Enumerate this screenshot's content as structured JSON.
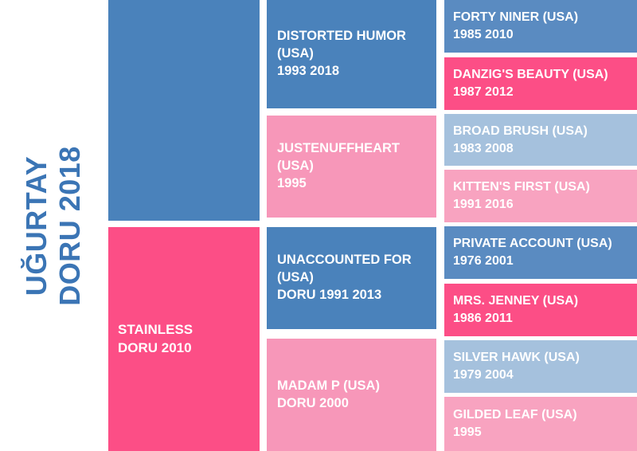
{
  "title": {
    "line1": "UĞURTAY",
    "line2": "DORU 2018"
  },
  "colors": {
    "blue": "#4a82bb",
    "blue_strong": "#5a8bc1",
    "blue_light": "#a5c1dd",
    "pink_bright": "#fc4e86",
    "pink_mid": "#f797b9",
    "pink_light": "#f8a3c0",
    "title_text": "#3b75b5",
    "cell_text": "#ffffff",
    "background": "#ffffff"
  },
  "generation1": [
    {
      "name": "sire-unnamed",
      "color_key": "blue",
      "lines": []
    },
    {
      "name": "stainless",
      "color_key": "pink_bright",
      "lines": [
        "STAINLESS",
        "DORU 2010"
      ]
    }
  ],
  "generation2": [
    {
      "name": "distorted-humor",
      "color_key": "blue",
      "lines": [
        "DISTORTED HUMOR",
        "(USA)",
        "1993 2018"
      ]
    },
    {
      "name": "justenuffheart",
      "color_key": "pink_mid",
      "lines": [
        "JUSTENUFFHEART",
        "(USA)",
        "1995"
      ]
    },
    {
      "name": "unaccounted-for",
      "color_key": "blue",
      "lines": [
        "UNACCOUNTED FOR",
        "(USA)",
        "DORU 1991 2013"
      ]
    },
    {
      "name": "madam-p",
      "color_key": "pink_mid",
      "lines": [
        "MADAM P (USA)",
        "DORU 2000"
      ]
    }
  ],
  "generation3": [
    {
      "name": "forty-niner",
      "color_key": "blue_strong",
      "lines": [
        "FORTY NINER (USA)",
        "1985 2010"
      ]
    },
    {
      "name": "danzigs-beauty",
      "color_key": "pink_bright",
      "lines": [
        "DANZIG'S BEAUTY (USA)",
        "1987 2012"
      ]
    },
    {
      "name": "broad-brush",
      "color_key": "blue_light",
      "lines": [
        "BROAD BRUSH (USA)",
        "1983 2008"
      ]
    },
    {
      "name": "kittens-first",
      "color_key": "pink_light",
      "lines": [
        "KITTEN'S FIRST (USA)",
        "1991 2016"
      ]
    },
    {
      "name": "private-account",
      "color_key": "blue_strong",
      "lines": [
        "PRIVATE ACCOUNT (USA)",
        "1976 2001"
      ]
    },
    {
      "name": "mrs-jenney",
      "color_key": "pink_bright",
      "lines": [
        "MRS. JENNEY (USA)",
        "1986 2011"
      ]
    },
    {
      "name": "silver-hawk",
      "color_key": "blue_light",
      "lines": [
        "SILVER HAWK (USA)",
        "1979 2004"
      ]
    },
    {
      "name": "gilded-leaf",
      "color_key": "pink_light",
      "lines": [
        "GILDED LEAF (USA)",
        "1995"
      ]
    }
  ]
}
